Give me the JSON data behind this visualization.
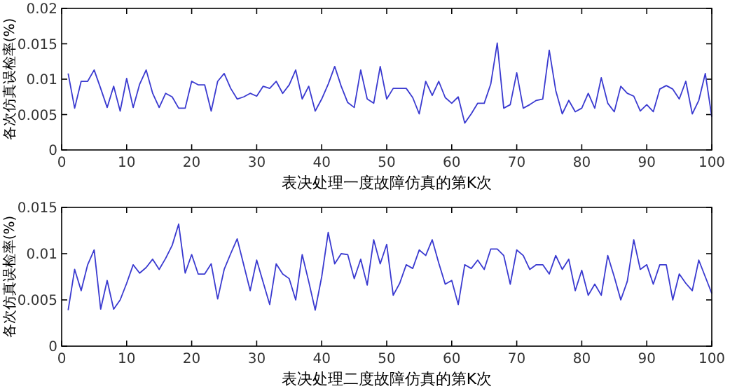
{
  "chart_data": [
    {
      "type": "line",
      "xlabel": "表决处理一度故障仿真的第K次",
      "ylabel": "各次仿真误检率(%)",
      "xlim": [
        0,
        100
      ],
      "ylim": [
        0,
        0.02
      ],
      "xticks": [
        0,
        10,
        20,
        30,
        40,
        50,
        60,
        70,
        80,
        90,
        100
      ],
      "yticks": [
        0,
        0.005,
        0.01,
        0.015,
        0.02
      ],
      "grid": false,
      "x": [
        1,
        2,
        3,
        4,
        5,
        6,
        7,
        8,
        9,
        10,
        11,
        12,
        13,
        14,
        15,
        16,
        17,
        18,
        19,
        20,
        21,
        22,
        23,
        24,
        25,
        26,
        27,
        28,
        29,
        30,
        31,
        32,
        33,
        34,
        35,
        36,
        37,
        38,
        39,
        40,
        41,
        42,
        43,
        44,
        45,
        46,
        47,
        48,
        49,
        50,
        51,
        52,
        53,
        54,
        55,
        56,
        57,
        58,
        59,
        60,
        61,
        62,
        63,
        64,
        65,
        66,
        67,
        68,
        69,
        70,
        71,
        72,
        73,
        74,
        75,
        76,
        77,
        78,
        79,
        80,
        81,
        82,
        83,
        84,
        85,
        86,
        87,
        88,
        89,
        90,
        91,
        92,
        93,
        94,
        95,
        96,
        97,
        98,
        99,
        100
      ],
      "series": [
        {
          "color": "#3a3ad0",
          "values": [
            0.0108,
            0.0059,
            0.0097,
            0.0097,
            0.0113,
            0.0087,
            0.006,
            0.009,
            0.0055,
            0.0101,
            0.006,
            0.0093,
            0.0113,
            0.008,
            0.006,
            0.008,
            0.0075,
            0.0059,
            0.0059,
            0.0097,
            0.0092,
            0.0092,
            0.0055,
            0.0097,
            0.0108,
            0.0087,
            0.0072,
            0.0075,
            0.008,
            0.0076,
            0.009,
            0.0087,
            0.0097,
            0.008,
            0.0092,
            0.0113,
            0.0072,
            0.009,
            0.0055,
            0.0072,
            0.0093,
            0.0118,
            0.009,
            0.0067,
            0.006,
            0.0113,
            0.0072,
            0.0066,
            0.0118,
            0.0072,
            0.0087,
            0.0087,
            0.0087,
            0.0074,
            0.0051,
            0.0097,
            0.0077,
            0.0097,
            0.0074,
            0.0066,
            0.0075,
            0.0038,
            0.0051,
            0.0066,
            0.0066,
            0.0093,
            0.0151,
            0.0059,
            0.0064,
            0.0109,
            0.0059,
            0.0064,
            0.007,
            0.0072,
            0.0141,
            0.0084,
            0.0051,
            0.007,
            0.0054,
            0.0059,
            0.008,
            0.0059,
            0.0102,
            0.0066,
            0.0054,
            0.009,
            0.008,
            0.0076,
            0.0055,
            0.0064,
            0.0054,
            0.0086,
            0.0091,
            0.0086,
            0.0072,
            0.0097,
            0.0051,
            0.007,
            0.0108,
            0.0047
          ]
        }
      ]
    },
    {
      "type": "line",
      "xlabel": "表决处理二度故障仿真的第K次",
      "ylabel": "各次仿真误检率(%)",
      "xlim": [
        0,
        100
      ],
      "ylim": [
        0,
        0.015
      ],
      "xticks": [
        0,
        10,
        20,
        30,
        40,
        50,
        60,
        70,
        80,
        90,
        100
      ],
      "yticks": [
        0,
        0.005,
        0.01,
        0.015
      ],
      "grid": false,
      "x": [
        1,
        2,
        3,
        4,
        5,
        6,
        7,
        8,
        9,
        10,
        11,
        12,
        13,
        14,
        15,
        16,
        17,
        18,
        19,
        20,
        21,
        22,
        23,
        24,
        25,
        26,
        27,
        28,
        29,
        30,
        31,
        32,
        33,
        34,
        35,
        36,
        37,
        38,
        39,
        40,
        41,
        42,
        43,
        44,
        45,
        46,
        47,
        48,
        49,
        50,
        51,
        52,
        53,
        54,
        55,
        56,
        57,
        58,
        59,
        60,
        61,
        62,
        63,
        64,
        65,
        66,
        67,
        68,
        69,
        70,
        71,
        72,
        73,
        74,
        75,
        76,
        77,
        78,
        79,
        80,
        81,
        82,
        83,
        84,
        85,
        86,
        87,
        88,
        89,
        90,
        91,
        92,
        93,
        94,
        95,
        96,
        97,
        98,
        99,
        100
      ],
      "series": [
        {
          "color": "#3a3ad0",
          "values": [
            0.0039,
            0.0083,
            0.006,
            0.0088,
            0.0104,
            0.004,
            0.0071,
            0.004,
            0.005,
            0.0068,
            0.0088,
            0.0079,
            0.0085,
            0.0094,
            0.0083,
            0.0095,
            0.0109,
            0.0132,
            0.0079,
            0.0099,
            0.0078,
            0.0078,
            0.0089,
            0.0051,
            0.0083,
            0.01,
            0.0116,
            0.0088,
            0.006,
            0.0093,
            0.0069,
            0.0045,
            0.0089,
            0.0078,
            0.0073,
            0.005,
            0.0099,
            0.007,
            0.0039,
            0.0075,
            0.0123,
            0.0089,
            0.01,
            0.0099,
            0.0073,
            0.0094,
            0.0066,
            0.0115,
            0.0089,
            0.011,
            0.0055,
            0.0068,
            0.0088,
            0.0084,
            0.0104,
            0.0098,
            0.0115,
            0.009,
            0.0067,
            0.0071,
            0.0045,
            0.0088,
            0.0084,
            0.0093,
            0.0083,
            0.0105,
            0.0105,
            0.0098,
            0.0067,
            0.0104,
            0.0098,
            0.0083,
            0.0088,
            0.0088,
            0.0078,
            0.0098,
            0.0083,
            0.0094,
            0.006,
            0.0082,
            0.0055,
            0.0067,
            0.0055,
            0.0098,
            0.0075,
            0.005,
            0.007,
            0.0115,
            0.0083,
            0.0088,
            0.0067,
            0.0088,
            0.0088,
            0.005,
            0.0078,
            0.0068,
            0.006,
            0.0093,
            0.0075,
            0.0057
          ]
        }
      ]
    }
  ]
}
